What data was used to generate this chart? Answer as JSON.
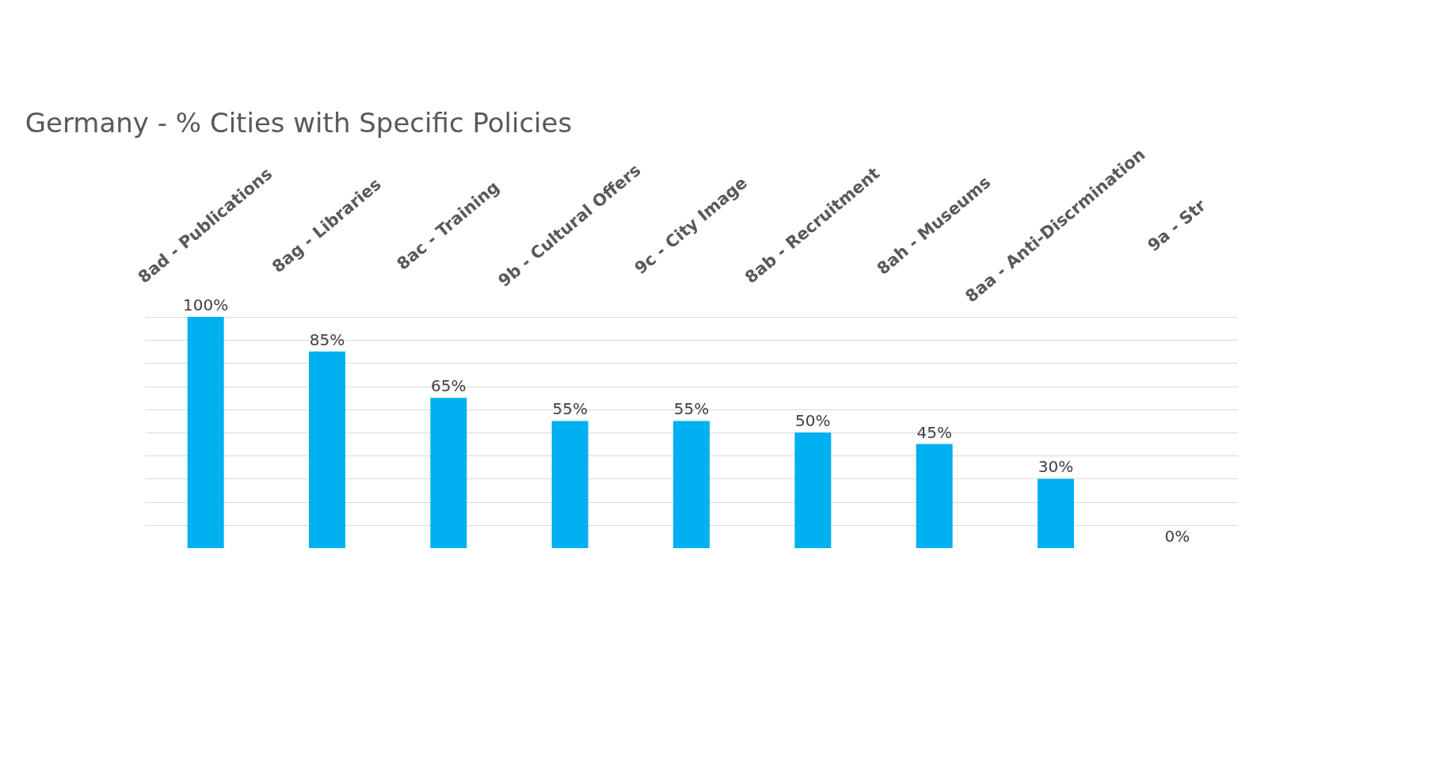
{
  "chart_data": {
    "type": "bar",
    "title": "Germany - % Cities with Specific Policies",
    "categories": [
      "8ad - Publications",
      "8ag - Libraries",
      "8ac - Training",
      "9b - Cultural Offers",
      "9c - City Image",
      "8ab - Recruitment",
      "8ah - Museums",
      "8aa - Anti-Discrmination",
      "9a - Str"
    ],
    "values": [
      100,
      85,
      65,
      55,
      55,
      50,
      45,
      30,
      0
    ],
    "value_labels": [
      "100%",
      "85%",
      "65%",
      "55%",
      "55%",
      "50%",
      "45%",
      "30%",
      "0%"
    ],
    "color": "#00b0f0",
    "ylim": [
      0,
      100
    ],
    "yticks": [
      {
        "value": 0,
        "label": null
      },
      {
        "value": 10,
        "label": null
      },
      {
        "value": 20,
        "label": null
      },
      {
        "value": 30,
        "label": null
      },
      {
        "value": 40,
        "label": null
      },
      {
        "value": 50,
        "label": null
      },
      {
        "value": 60,
        "label": null
      },
      {
        "value": 70,
        "label": null
      },
      {
        "value": 80,
        "label": null
      },
      {
        "value": 90,
        "label": null
      },
      {
        "value": 100,
        "label": null
      }
    ],
    "grid": "y",
    "tick_labels": "x"
  }
}
